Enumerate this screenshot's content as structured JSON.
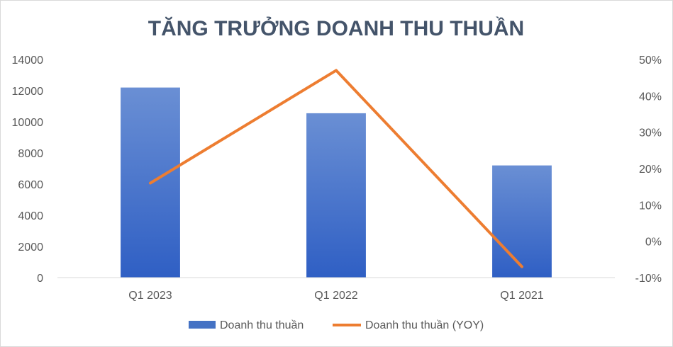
{
  "chart_data": {
    "type": "bar",
    "title": "TĂNG TRƯỞNG DOANH THU THUẦN",
    "categories": [
      "Q1 2023",
      "Q1 2022",
      "Q1 2021"
    ],
    "series": [
      {
        "name": "Doanh thu thuần",
        "type": "bar",
        "axis": "left",
        "color": "#4472c4",
        "values": [
          12200,
          10550,
          7200
        ]
      },
      {
        "name": "Doanh thu thuần (YOY)",
        "type": "line",
        "axis": "right",
        "color": "#ed7d31",
        "values": [
          0.16,
          0.47,
          -0.07
        ]
      }
    ],
    "y_left": {
      "min": 0,
      "max": 14000,
      "step": 2000,
      "ticks": [
        "0",
        "2000",
        "4000",
        "6000",
        "8000",
        "10000",
        "12000",
        "14000"
      ]
    },
    "y_right": {
      "min": -0.1,
      "max": 0.5,
      "step": 0.1,
      "ticks": [
        "-10%",
        "0%",
        "10%",
        "20%",
        "30%",
        "40%",
        "50%"
      ]
    },
    "grid": false,
    "legend_position": "bottom"
  }
}
